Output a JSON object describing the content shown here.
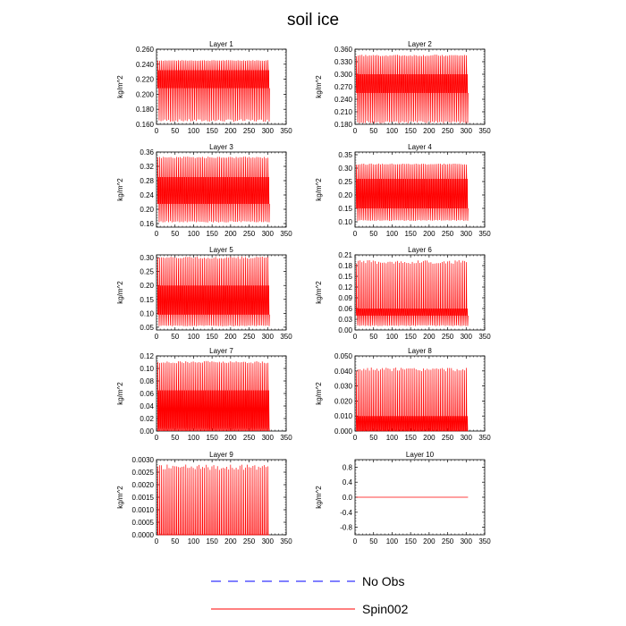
{
  "figure": {
    "title": "soil ice",
    "legend": [
      {
        "name": "No Obs",
        "color": "#0000ff",
        "style": "dashed"
      },
      {
        "name": "Spin002",
        "color": "#ff0000",
        "style": "solid"
      }
    ]
  },
  "chart_data": [
    {
      "type": "line",
      "title": "Layer 1",
      "ylabel": "kg/m^2",
      "xlim": [
        0,
        350
      ],
      "xticks": [
        0,
        50,
        100,
        150,
        200,
        250,
        300,
        350
      ],
      "xtick_labels": [
        "0",
        "50",
        "100",
        "150",
        "200",
        "250",
        "300",
        "350"
      ],
      "ylim": [
        0.16,
        0.26
      ],
      "yticks": [
        0.16,
        0.18,
        0.2,
        0.22,
        0.24,
        0.26
      ],
      "ytick_labels": [
        "0.160",
        "0.180",
        "0.200",
        "0.220",
        "0.240",
        "0.260"
      ],
      "series": [
        {
          "name": "Spin002",
          "color": "#ff0000",
          "x_range": [
            3,
            305
          ],
          "cycles": 60,
          "min": 0.165,
          "max": 0.245,
          "band": [
            0.208,
            0.232
          ]
        }
      ]
    },
    {
      "type": "line",
      "title": "Layer 2",
      "ylabel": "kg/m^2",
      "xlim": [
        0,
        350
      ],
      "xticks": [
        0,
        50,
        100,
        150,
        200,
        250,
        300,
        350
      ],
      "xtick_labels": [
        "0",
        "50",
        "100",
        "150",
        "200",
        "250",
        "300",
        "350"
      ],
      "ylim": [
        0.18,
        0.36
      ],
      "yticks": [
        0.18,
        0.21,
        0.24,
        0.27,
        0.3,
        0.33,
        0.36
      ],
      "ytick_labels": [
        "0.180",
        "0.210",
        "0.240",
        "0.270",
        "0.300",
        "0.330",
        "0.360"
      ],
      "series": [
        {
          "name": "Spin002",
          "color": "#ff0000",
          "x_range": [
            3,
            305
          ],
          "cycles": 60,
          "min": 0.185,
          "max": 0.345,
          "band": [
            0.255,
            0.3
          ]
        }
      ]
    },
    {
      "type": "line",
      "title": "Layer 3",
      "ylabel": "kg/m^2",
      "xlim": [
        0,
        350
      ],
      "xticks": [
        0,
        50,
        100,
        150,
        200,
        250,
        300,
        350
      ],
      "xtick_labels": [
        "0",
        "50",
        "100",
        "150",
        "200",
        "250",
        "300",
        "350"
      ],
      "ylim": [
        0.15,
        0.36
      ],
      "yticks": [
        0.16,
        0.2,
        0.24,
        0.28,
        0.32,
        0.36
      ],
      "ytick_labels": [
        "0.16",
        "0.20",
        "0.24",
        "0.28",
        "0.32",
        "0.36"
      ],
      "series": [
        {
          "name": "Spin002",
          "color": "#ff0000",
          "x_range": [
            3,
            305
          ],
          "cycles": 60,
          "min": 0.165,
          "max": 0.345,
          "band": [
            0.215,
            0.29
          ]
        }
      ]
    },
    {
      "type": "line",
      "title": "Layer 4",
      "ylabel": "kg/m^2",
      "xlim": [
        0,
        350
      ],
      "xticks": [
        0,
        50,
        100,
        150,
        200,
        250,
        300,
        350
      ],
      "xtick_labels": [
        "0",
        "50",
        "100",
        "150",
        "200",
        "250",
        "300",
        "350"
      ],
      "ylim": [
        0.08,
        0.36
      ],
      "yticks": [
        0.1,
        0.15,
        0.2,
        0.25,
        0.3,
        0.35
      ],
      "ytick_labels": [
        "0.10",
        "0.15",
        "0.20",
        "0.25",
        "0.30",
        "0.35"
      ],
      "series": [
        {
          "name": "Spin002",
          "color": "#ff0000",
          "x_range": [
            3,
            305
          ],
          "cycles": 60,
          "min": 0.105,
          "max": 0.315,
          "band": [
            0.15,
            0.26
          ]
        }
      ]
    },
    {
      "type": "line",
      "title": "Layer 5",
      "ylabel": "kg/m^2",
      "xlim": [
        0,
        350
      ],
      "xticks": [
        0,
        50,
        100,
        150,
        200,
        250,
        300,
        350
      ],
      "xtick_labels": [
        "0",
        "50",
        "100",
        "150",
        "200",
        "250",
        "300",
        "350"
      ],
      "ylim": [
        0.04,
        0.31
      ],
      "yticks": [
        0.05,
        0.1,
        0.15,
        0.2,
        0.25,
        0.3
      ],
      "ytick_labels": [
        "0.05",
        "0.10",
        "0.15",
        "0.20",
        "0.25",
        "0.30"
      ],
      "series": [
        {
          "name": "Spin002",
          "color": "#ff0000",
          "x_range": [
            3,
            305
          ],
          "cycles": 60,
          "min": 0.055,
          "max": 0.3,
          "band": [
            0.095,
            0.2
          ]
        }
      ]
    },
    {
      "type": "line",
      "title": "Layer 6",
      "ylabel": "kg/m^2",
      "xlim": [
        0,
        350
      ],
      "xticks": [
        0,
        50,
        100,
        150,
        200,
        250,
        300,
        350
      ],
      "xtick_labels": [
        "0",
        "50",
        "100",
        "150",
        "200",
        "250",
        "300",
        "350"
      ],
      "ylim": [
        0.0,
        0.21
      ],
      "yticks": [
        0.0,
        0.03,
        0.06,
        0.09,
        0.12,
        0.15,
        0.18,
        0.21
      ],
      "ytick_labels": [
        "0.00",
        "0.03",
        "0.06",
        "0.09",
        "0.12",
        "0.15",
        "0.18",
        "0.21"
      ],
      "series": [
        {
          "name": "Spin002",
          "color": "#ff0000",
          "x_range": [
            3,
            305
          ],
          "cycles": 60,
          "min": 0.012,
          "max": 0.19,
          "band": [
            0.04,
            0.06
          ]
        }
      ]
    },
    {
      "type": "line",
      "title": "Layer 7",
      "ylabel": "kg/m^2",
      "xlim": [
        0,
        350
      ],
      "xticks": [
        0,
        50,
        100,
        150,
        200,
        250,
        300,
        350
      ],
      "xtick_labels": [
        "0",
        "50",
        "100",
        "150",
        "200",
        "250",
        "300",
        "350"
      ],
      "ylim": [
        0.0,
        0.12
      ],
      "yticks": [
        0.0,
        0.02,
        0.04,
        0.06,
        0.08,
        0.1,
        0.12
      ],
      "ytick_labels": [
        "0.00",
        "0.02",
        "0.04",
        "0.06",
        "0.08",
        "0.10",
        "0.12"
      ],
      "series": [
        {
          "name": "Spin002",
          "color": "#ff0000",
          "x_range": [
            3,
            305
          ],
          "cycles": 60,
          "min": 0.005,
          "max": 0.11,
          "band": [
            0.0,
            0.065
          ]
        }
      ]
    },
    {
      "type": "line",
      "title": "Layer 8",
      "ylabel": "kg/m^2",
      "xlim": [
        0,
        350
      ],
      "xticks": [
        0,
        50,
        100,
        150,
        200,
        250,
        300,
        350
      ],
      "xtick_labels": [
        "0",
        "50",
        "100",
        "150",
        "200",
        "250",
        "300",
        "350"
      ],
      "ylim": [
        0.0,
        0.05
      ],
      "yticks": [
        0.0,
        0.01,
        0.02,
        0.03,
        0.04,
        0.05
      ],
      "ytick_labels": [
        "0.000",
        "0.010",
        "0.020",
        "0.030",
        "0.040",
        "0.050"
      ],
      "series": [
        {
          "name": "Spin002",
          "color": "#ff0000",
          "x_range": [
            3,
            305
          ],
          "cycles": 60,
          "min": 0.0,
          "max": 0.041,
          "band": [
            0.0,
            0.01
          ]
        }
      ]
    },
    {
      "type": "line",
      "title": "Layer 9",
      "ylabel": "kg/m^2",
      "xlim": [
        0,
        350
      ],
      "xticks": [
        0,
        50,
        100,
        150,
        200,
        250,
        300,
        350
      ],
      "xtick_labels": [
        "0",
        "50",
        "100",
        "150",
        "200",
        "250",
        "300",
        "350"
      ],
      "ylim": [
        0.0,
        0.003
      ],
      "yticks": [
        0.0,
        0.0005,
        0.001,
        0.0015,
        0.002,
        0.0025,
        0.003
      ],
      "ytick_labels": [
        "0.0000",
        "0.0005",
        "0.0010",
        "0.0015",
        "0.0020",
        "0.0025",
        "0.0030"
      ],
      "series": [
        {
          "name": "Spin002",
          "color": "#ff0000",
          "x_range": [
            3,
            305
          ],
          "cycles": 60,
          "min": 0.0,
          "max": 0.0027,
          "band": [
            0.0,
            0.0
          ]
        }
      ]
    },
    {
      "type": "line",
      "title": "Layer 10",
      "ylabel": "kg/m^2",
      "xlim": [
        0,
        350
      ],
      "xticks": [
        0,
        50,
        100,
        150,
        200,
        250,
        300,
        350
      ],
      "xtick_labels": [
        "0",
        "50",
        "100",
        "150",
        "200",
        "250",
        "300",
        "350"
      ],
      "ylim": [
        -1.0,
        1.0
      ],
      "yticks": [
        -0.8,
        -0.4,
        0.0,
        0.4,
        0.8
      ],
      "ytick_labels": [
        "-0.8",
        "-0.4",
        "0.0",
        "0.4",
        "0.8"
      ],
      "series": [
        {
          "name": "Spin002",
          "color": "#ff0000",
          "x_range": [
            3,
            305
          ],
          "cycles": 0,
          "min": 0.0,
          "max": 0.0,
          "band": [
            0.0,
            0.0
          ]
        }
      ]
    }
  ]
}
